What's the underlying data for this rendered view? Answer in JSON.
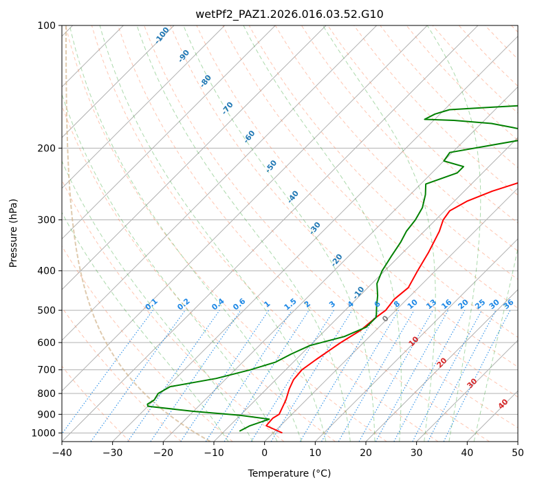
{
  "chart_data": {
    "type": "skew-t",
    "title": "wetPf2_PAZ1.2026.016.03.52.G10",
    "xlabel": "Temperature (°C)",
    "ylabel": "Pressure (hPa)",
    "xlim": [
      -40,
      50
    ],
    "ylim": [
      1050,
      100
    ],
    "y_scale": "log",
    "grid": true,
    "x_ticks": [
      "−40",
      "−30",
      "−20",
      "−10",
      "0",
      "10",
      "20",
      "30",
      "40",
      "50"
    ],
    "y_ticks": [
      "100",
      "200",
      "300",
      "400",
      "500",
      "600",
      "700",
      "800",
      "900",
      "1000"
    ],
    "series": [
      {
        "role": "temperature",
        "color": "#ff0000",
        "points": [
          [
            1.8,
            1000
          ],
          [
            -2.8,
            960
          ],
          [
            -3.0,
            920
          ],
          [
            -2.5,
            900
          ],
          [
            -4.0,
            830
          ],
          [
            -5.5,
            780
          ],
          [
            -6.5,
            740
          ],
          [
            -6.8,
            700
          ],
          [
            -6.0,
            660
          ],
          [
            -4.5,
            600
          ],
          [
            -3.0,
            560
          ],
          [
            -2.5,
            520
          ],
          [
            -2.0,
            500
          ],
          [
            -2.5,
            470
          ],
          [
            -2.0,
            440
          ],
          [
            -3.5,
            400
          ],
          [
            -5.0,
            360
          ],
          [
            -7.0,
            320
          ],
          [
            -8.5,
            300
          ],
          [
            -9.0,
            285
          ],
          [
            -7.5,
            270
          ],
          [
            -4.5,
            255
          ],
          [
            -1.5,
            245
          ],
          [
            3.0,
            230
          ],
          [
            8.0,
            215
          ],
          [
            12.0,
            200
          ],
          [
            15.0,
            185
          ],
          [
            19.0,
            170
          ],
          [
            24.0,
            160
          ],
          [
            27.0,
            150
          ],
          [
            30.0,
            140
          ],
          [
            33.0,
            130
          ],
          [
            37.5,
            120
          ],
          [
            41.0,
            110
          ],
          [
            44.0,
            100
          ]
        ]
      },
      {
        "role": "dewpoint",
        "color": "#008000",
        "points": [
          [
            -7.0,
            990
          ],
          [
            -6.0,
            960
          ],
          [
            -3.5,
            925
          ],
          [
            -10.0,
            905
          ],
          [
            -20.0,
            885
          ],
          [
            -30.0,
            860
          ],
          [
            -30.5,
            850
          ],
          [
            -30.0,
            830
          ],
          [
            -30.5,
            800
          ],
          [
            -29.5,
            770
          ],
          [
            -22.0,
            735
          ],
          [
            -17.0,
            700
          ],
          [
            -13.5,
            670
          ],
          [
            -12.0,
            640
          ],
          [
            -10.0,
            610
          ],
          [
            -5.0,
            580
          ],
          [
            -2.5,
            550
          ],
          [
            -2.5,
            520
          ],
          [
            -4.5,
            490
          ],
          [
            -6.5,
            460
          ],
          [
            -9.0,
            430
          ],
          [
            -10.5,
            400
          ],
          [
            -11.5,
            370
          ],
          [
            -12.5,
            340
          ],
          [
            -13.5,
            320
          ],
          [
            -14.0,
            300
          ],
          [
            -15.0,
            280
          ],
          [
            -17.0,
            260
          ],
          [
            -19.0,
            245
          ],
          [
            -15.0,
            230
          ],
          [
            -15.0,
            222
          ],
          [
            -20.0,
            215
          ],
          [
            -20.5,
            205
          ],
          [
            -14.0,
            197
          ],
          [
            -8.0,
            190
          ],
          [
            -7.5,
            183
          ],
          [
            -13.0,
            178
          ],
          [
            -18.0,
            174
          ],
          [
            -26.0,
            171
          ],
          [
            -32.0,
            170
          ],
          [
            -31.0,
            165
          ],
          [
            -29.0,
            161
          ],
          [
            -22.0,
            159
          ],
          [
            -15.0,
            157
          ],
          [
            -8.0,
            154
          ],
          [
            -5.0,
            148
          ],
          [
            -1.0,
            140
          ],
          [
            3.0,
            130
          ],
          [
            5.0,
            120
          ],
          [
            9.0,
            110
          ],
          [
            12.0,
            100
          ]
        ]
      }
    ],
    "annotations": {
      "dry_adiabats": [
        "-100",
        "-90",
        "-80",
        "-70",
        "-60",
        "-50",
        "-40",
        "-30",
        "-20",
        "-10"
      ],
      "moist_adiabats": [
        "0",
        "10",
        "20",
        "30",
        "40"
      ],
      "mixing_ratios": [
        "0.1",
        "0.2",
        "0.4",
        "0.6",
        "1",
        "1.5",
        "2",
        "3",
        "4",
        "6",
        "8",
        "10",
        "13",
        "16",
        "20",
        "25",
        "30",
        "36"
      ]
    },
    "colors": {
      "isotherm": "#b0b0b0",
      "isobar": "#b0b0b0",
      "dry_adiabat": "#ff7f50",
      "moist_adiabat": "#2ca02c",
      "mixing_ratio": "#1e88e5",
      "adiabat_label": "#1f77b4",
      "moist_label": "#d62728",
      "zero_label": "#7f7f7f",
      "lcl_curve": "#d2b48c"
    }
  }
}
